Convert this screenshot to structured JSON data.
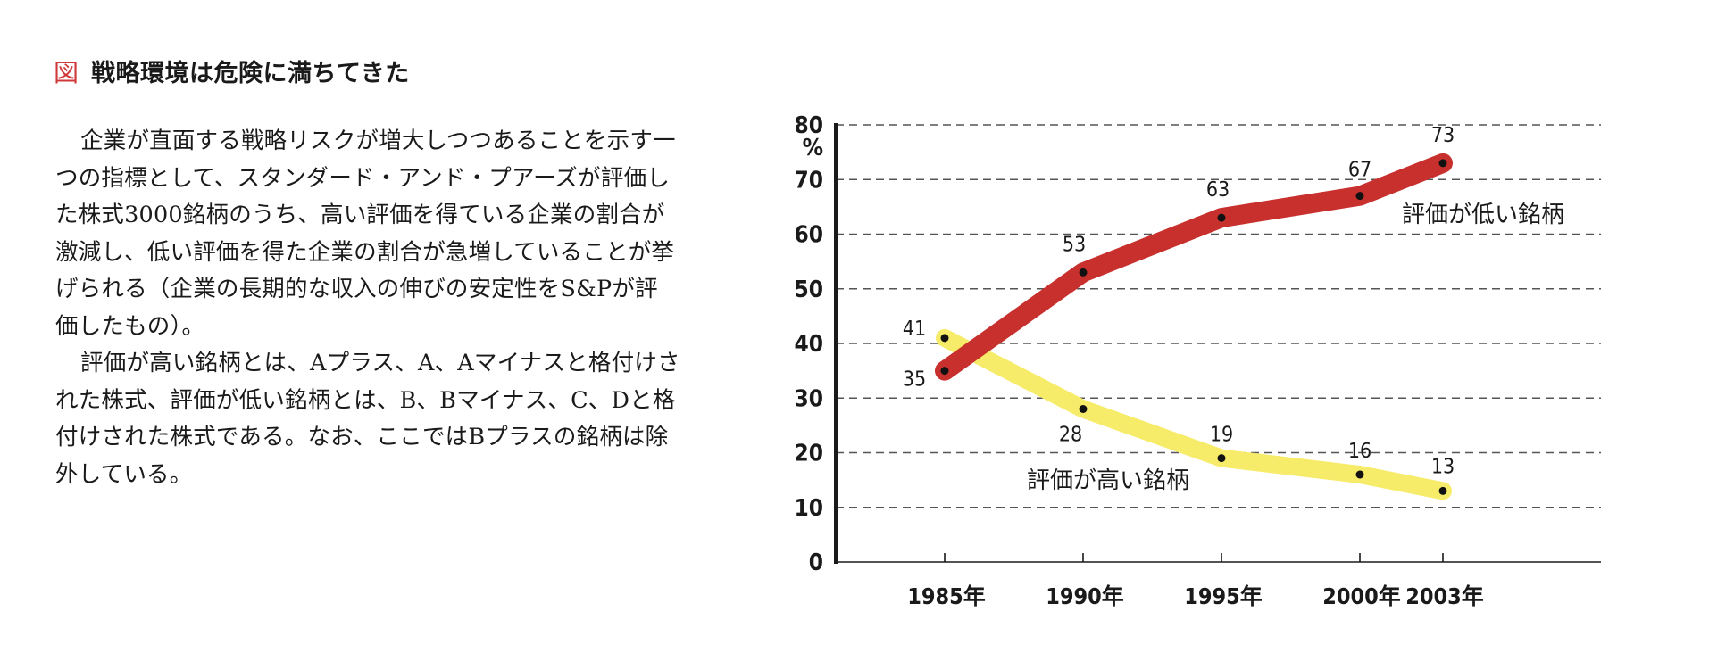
{
  "figure": {
    "mark": "図",
    "title": "戦略環境は危険に満ちてきた"
  },
  "body": {
    "paragraphs": [
      "企業が直面する戦略リスクが増大しつつあることを示す一つの指標として、スタンダード・アンド・プアーズが評価した株式3000銘柄のうち、高い評価を得ている企業の割合が激減し、低い評価を得た企業の割合が急増していることが挙げられる（企業の長期的な収入の伸びの安定性をS&Pが評価したもの）。",
      "評価が高い銘柄とは、Aプラス、A、Aマイナスと格付けされた株式、評価が低い銘柄とは、B、Bマイナス、C、Dと格付けされた株式である。なお、ここではBプラスの銘柄は除外している。"
    ]
  },
  "chart_data": {
    "type": "line",
    "x": [
      "1985年",
      "1990年",
      "1995年",
      "2000年",
      "2003年"
    ],
    "x_years": [
      1985,
      1990,
      1995,
      2000,
      2003
    ],
    "ylim": [
      0,
      80
    ],
    "yticks": [
      0,
      10,
      20,
      30,
      40,
      50,
      60,
      70,
      80
    ],
    "y_unit": "%",
    "grid": "horizontal dashed",
    "series": [
      {
        "name": "評価が低い銘柄",
        "values": [
          35,
          53,
          63,
          67,
          73
        ],
        "color": "#c8302e"
      },
      {
        "name": "評価が高い銘柄",
        "values": [
          41,
          28,
          19,
          16,
          13
        ],
        "color": "#f7ec6a"
      }
    ]
  }
}
